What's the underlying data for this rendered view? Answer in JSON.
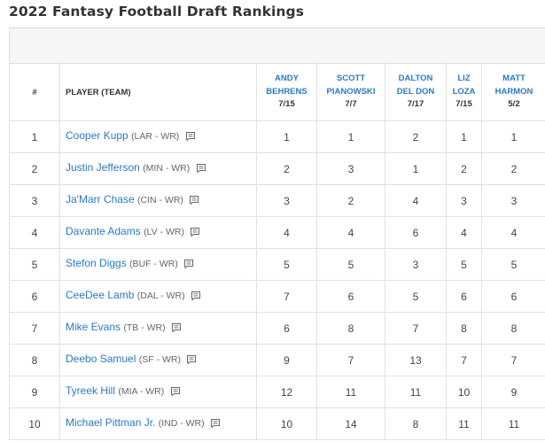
{
  "title": "2022 Fantasy Football Draft Rankings",
  "headers": {
    "rank": "#",
    "player": "PLAYER (TEAM)"
  },
  "experts": [
    {
      "first": "ANDY",
      "last": "BEHRENS",
      "date": "7/15"
    },
    {
      "first": "SCOTT",
      "last": "PIANOWSKI",
      "date": "7/7"
    },
    {
      "first": "DALTON",
      "last": "DEL DON",
      "date": "7/17"
    },
    {
      "first": "LIZ",
      "last": "LOZA",
      "date": "7/15"
    },
    {
      "first": "MATT",
      "last": "HARMON",
      "date": "5/2"
    }
  ],
  "rows": [
    {
      "rank": "1",
      "name": "Cooper Kupp",
      "team": "(LAR - WR)",
      "ranks": [
        "1",
        "1",
        "2",
        "1",
        "1"
      ]
    },
    {
      "rank": "2",
      "name": "Justin Jefferson",
      "team": "(MIN - WR)",
      "ranks": [
        "2",
        "3",
        "1",
        "2",
        "2"
      ]
    },
    {
      "rank": "3",
      "name": "Ja'Marr Chase",
      "team": "(CIN - WR)",
      "ranks": [
        "3",
        "2",
        "4",
        "3",
        "3"
      ]
    },
    {
      "rank": "4",
      "name": "Davante Adams",
      "team": "(LV - WR)",
      "ranks": [
        "4",
        "4",
        "6",
        "4",
        "4"
      ]
    },
    {
      "rank": "5",
      "name": "Stefon Diggs",
      "team": "(BUF - WR)",
      "ranks": [
        "5",
        "5",
        "3",
        "5",
        "5"
      ]
    },
    {
      "rank": "6",
      "name": "CeeDee Lamb",
      "team": "(DAL - WR)",
      "ranks": [
        "7",
        "6",
        "5",
        "6",
        "6"
      ]
    },
    {
      "rank": "7",
      "name": "Mike Evans",
      "team": "(TB - WR)",
      "ranks": [
        "6",
        "8",
        "7",
        "8",
        "8"
      ]
    },
    {
      "rank": "8",
      "name": "Deebo Samuel",
      "team": "(SF - WR)",
      "ranks": [
        "9",
        "7",
        "13",
        "7",
        "7"
      ]
    },
    {
      "rank": "9",
      "name": "Tyreek Hill",
      "team": "(MIA - WR)",
      "ranks": [
        "12",
        "11",
        "11",
        "10",
        "9"
      ]
    },
    {
      "rank": "10",
      "name": "Michael Pittman Jr.",
      "team": "(IND - WR)",
      "ranks": [
        "10",
        "14",
        "8",
        "11",
        "11"
      ]
    }
  ],
  "icons": {
    "note": "note-icon"
  },
  "colors": {
    "link": "#2b79c2",
    "border": "#e1e1e1",
    "band": "#f7f7f7",
    "text": "#333333"
  }
}
